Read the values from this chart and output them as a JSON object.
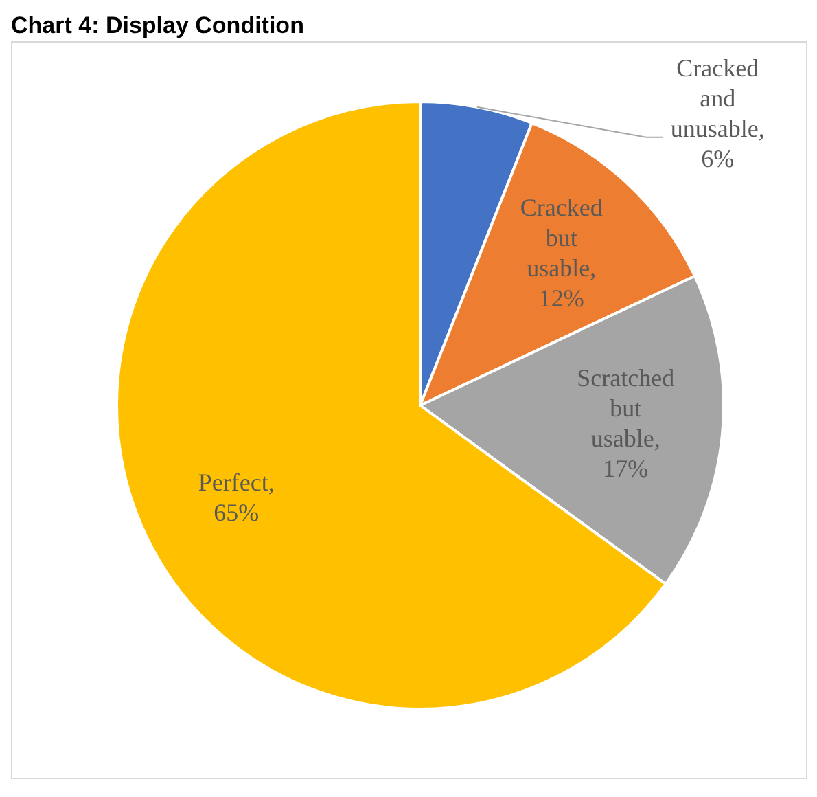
{
  "chart_data": {
    "type": "pie",
    "title": "Chart 4: Display Condition",
    "categories": [
      "Cracked and unusable",
      "Cracked but usable",
      "Scratched but usable",
      "Perfect"
    ],
    "values": [
      6,
      12,
      17,
      65
    ],
    "value_labels": [
      ", 6%",
      ", 12%",
      ", 17%",
      ", 65%"
    ],
    "colors": [
      "#4472c4",
      "#ed7d31",
      "#a5a5a5",
      "#ffc000"
    ],
    "data_labels": true,
    "legend": false
  }
}
